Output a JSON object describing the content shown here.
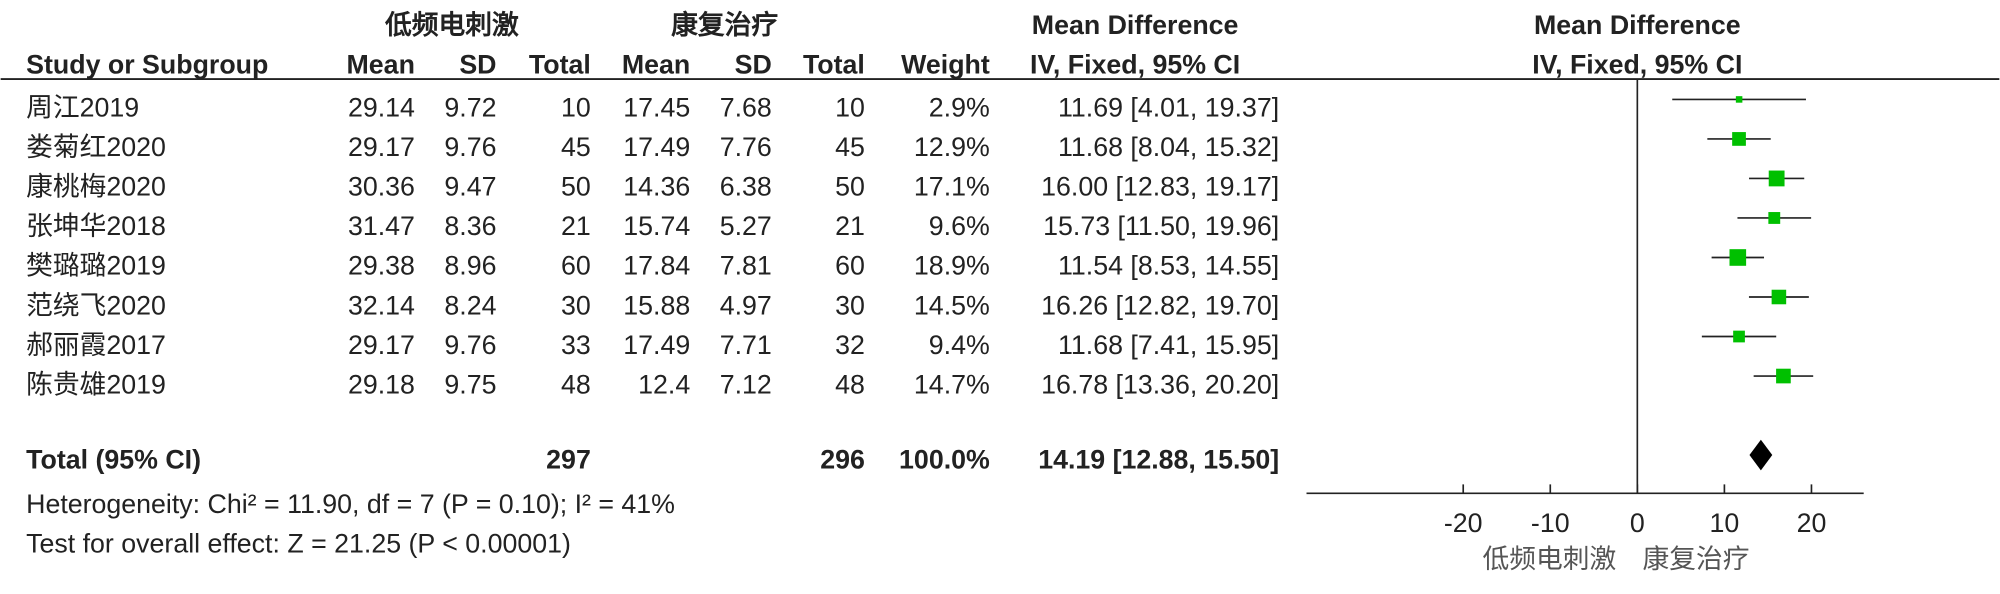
{
  "chart_data": {
    "type": "forest",
    "group_labels": [
      "低频电刺激",
      "康复治疗"
    ],
    "effect_header": [
      "Mean Difference",
      "IV, Fixed, 95% CI"
    ],
    "plot_header": [
      "Mean Difference",
      "IV, Fixed, 95% CI"
    ],
    "columns": [
      "Study or Subgroup",
      "Mean",
      "SD",
      "Total",
      "Mean",
      "SD",
      "Total",
      "Weight"
    ],
    "studies": [
      {
        "name": "周江2019",
        "mean1": 29.14,
        "sd1": 9.72,
        "n1": 10,
        "mean2": 17.45,
        "sd2": 7.68,
        "n2": 10,
        "weight": 2.9,
        "weight_label": "2.9%",
        "md": 11.69,
        "lower": 4.01,
        "upper": 19.37,
        "ci_label": "11.69 [4.01, 19.37]"
      },
      {
        "name": "娄菊红2020",
        "mean1": 29.17,
        "sd1": 9.76,
        "n1": 45,
        "mean2": 17.49,
        "sd2": 7.76,
        "n2": 45,
        "weight": 12.9,
        "weight_label": "12.9%",
        "md": 11.68,
        "lower": 8.04,
        "upper": 15.32,
        "ci_label": "11.68 [8.04, 15.32]"
      },
      {
        "name": "康桃梅2020",
        "mean1": 30.36,
        "sd1": 9.47,
        "n1": 50,
        "mean2": 14.36,
        "sd2": 6.38,
        "n2": 50,
        "weight": 17.1,
        "weight_label": "17.1%",
        "md": 16.0,
        "lower": 12.83,
        "upper": 19.17,
        "ci_label": "16.00 [12.83, 19.17]"
      },
      {
        "name": "张坤华2018",
        "mean1": 31.47,
        "sd1": 8.36,
        "n1": 21,
        "mean2": 15.74,
        "sd2": 5.27,
        "n2": 21,
        "weight": 9.6,
        "weight_label": "9.6%",
        "md": 15.73,
        "lower": 11.5,
        "upper": 19.96,
        "ci_label": "15.73 [11.50, 19.96]"
      },
      {
        "name": "樊璐璐2019",
        "mean1": 29.38,
        "sd1": 8.96,
        "n1": 60,
        "mean2": 17.84,
        "sd2": 7.81,
        "n2": 60,
        "weight": 18.9,
        "weight_label": "18.9%",
        "md": 11.54,
        "lower": 8.53,
        "upper": 14.55,
        "ci_label": "11.54 [8.53, 14.55]"
      },
      {
        "name": "范绕飞2020",
        "mean1": 32.14,
        "sd1": 8.24,
        "n1": 30,
        "mean2": 15.88,
        "sd2": 4.97,
        "n2": 30,
        "weight": 14.5,
        "weight_label": "14.5%",
        "md": 16.26,
        "lower": 12.82,
        "upper": 19.7,
        "ci_label": "16.26 [12.82, 19.70]"
      },
      {
        "name": "郝丽霞2017",
        "mean1": 29.17,
        "sd1": 9.76,
        "n1": 33,
        "mean2": 17.49,
        "sd2": 7.71,
        "n2": 32,
        "weight": 9.4,
        "weight_label": "9.4%",
        "md": 11.68,
        "lower": 7.41,
        "upper": 15.95,
        "ci_label": "11.68 [7.41, 15.95]"
      },
      {
        "name": "陈贵雄2019",
        "mean1": 29.18,
        "sd1": 9.75,
        "n1": 48,
        "mean2": 12.4,
        "sd2": 7.12,
        "n2": 48,
        "weight": 14.7,
        "weight_label": "14.7%",
        "md": 16.78,
        "lower": 13.36,
        "upper": 20.2,
        "ci_label": "16.78 [13.36, 20.20]"
      }
    ],
    "total": {
      "name": "Total (95% CI)",
      "n1": 297,
      "n2": 296,
      "weight": 100.0,
      "weight_label": "100.0%",
      "md": 14.19,
      "lower": 12.88,
      "upper": 15.5,
      "ci_label": "14.19 [12.88, 15.50]"
    },
    "notes": [
      "Heterogeneity: Chi² = 11.90, df = 7 (P = 0.10); I² = 41%",
      "Test for overall effect: Z = 21.25 (P < 0.00001)"
    ],
    "xlim": [
      -38,
      26
    ],
    "xticks": [
      -20,
      -10,
      0,
      10,
      20
    ],
    "favours": [
      "低频电刺激",
      "康复治疗"
    ],
    "square_color": "#00c000"
  }
}
